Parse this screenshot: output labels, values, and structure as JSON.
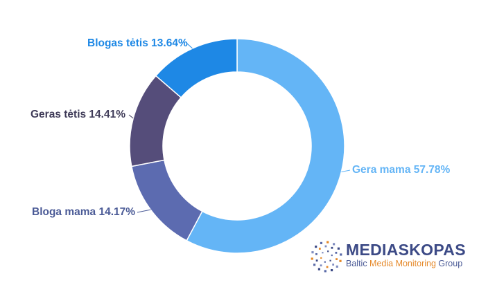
{
  "chart_data": {
    "type": "pie",
    "donut": true,
    "categories": [
      "Gera mama",
      "Bloga mama",
      "Geras tėtis",
      "Blogas tėtis"
    ],
    "values": [
      57.78,
      14.17,
      14.41,
      13.64
    ],
    "labels": [
      "Gera mama 57.78%",
      "Bloga mama 14.17%",
      "Geras tėtis 14.41%",
      "Blogas tėtis 13.64%"
    ],
    "colors": [
      "#64b5f6",
      "#5c6bb0",
      "#554d7a",
      "#1e88e5"
    ],
    "label_colors": [
      "#64b5f6",
      "#4a5a96",
      "#3f3b58",
      "#1e88e5"
    ],
    "start": "top, clockwise",
    "legend": "none"
  },
  "brand": {
    "name": "MEDIASKOPAS",
    "tagline_pre": "Baltic ",
    "tagline_highlight": "Media Monitoring",
    "tagline_post": " Group",
    "colors": {
      "primary": "#3c4a86",
      "accent": "#e5892a"
    }
  }
}
